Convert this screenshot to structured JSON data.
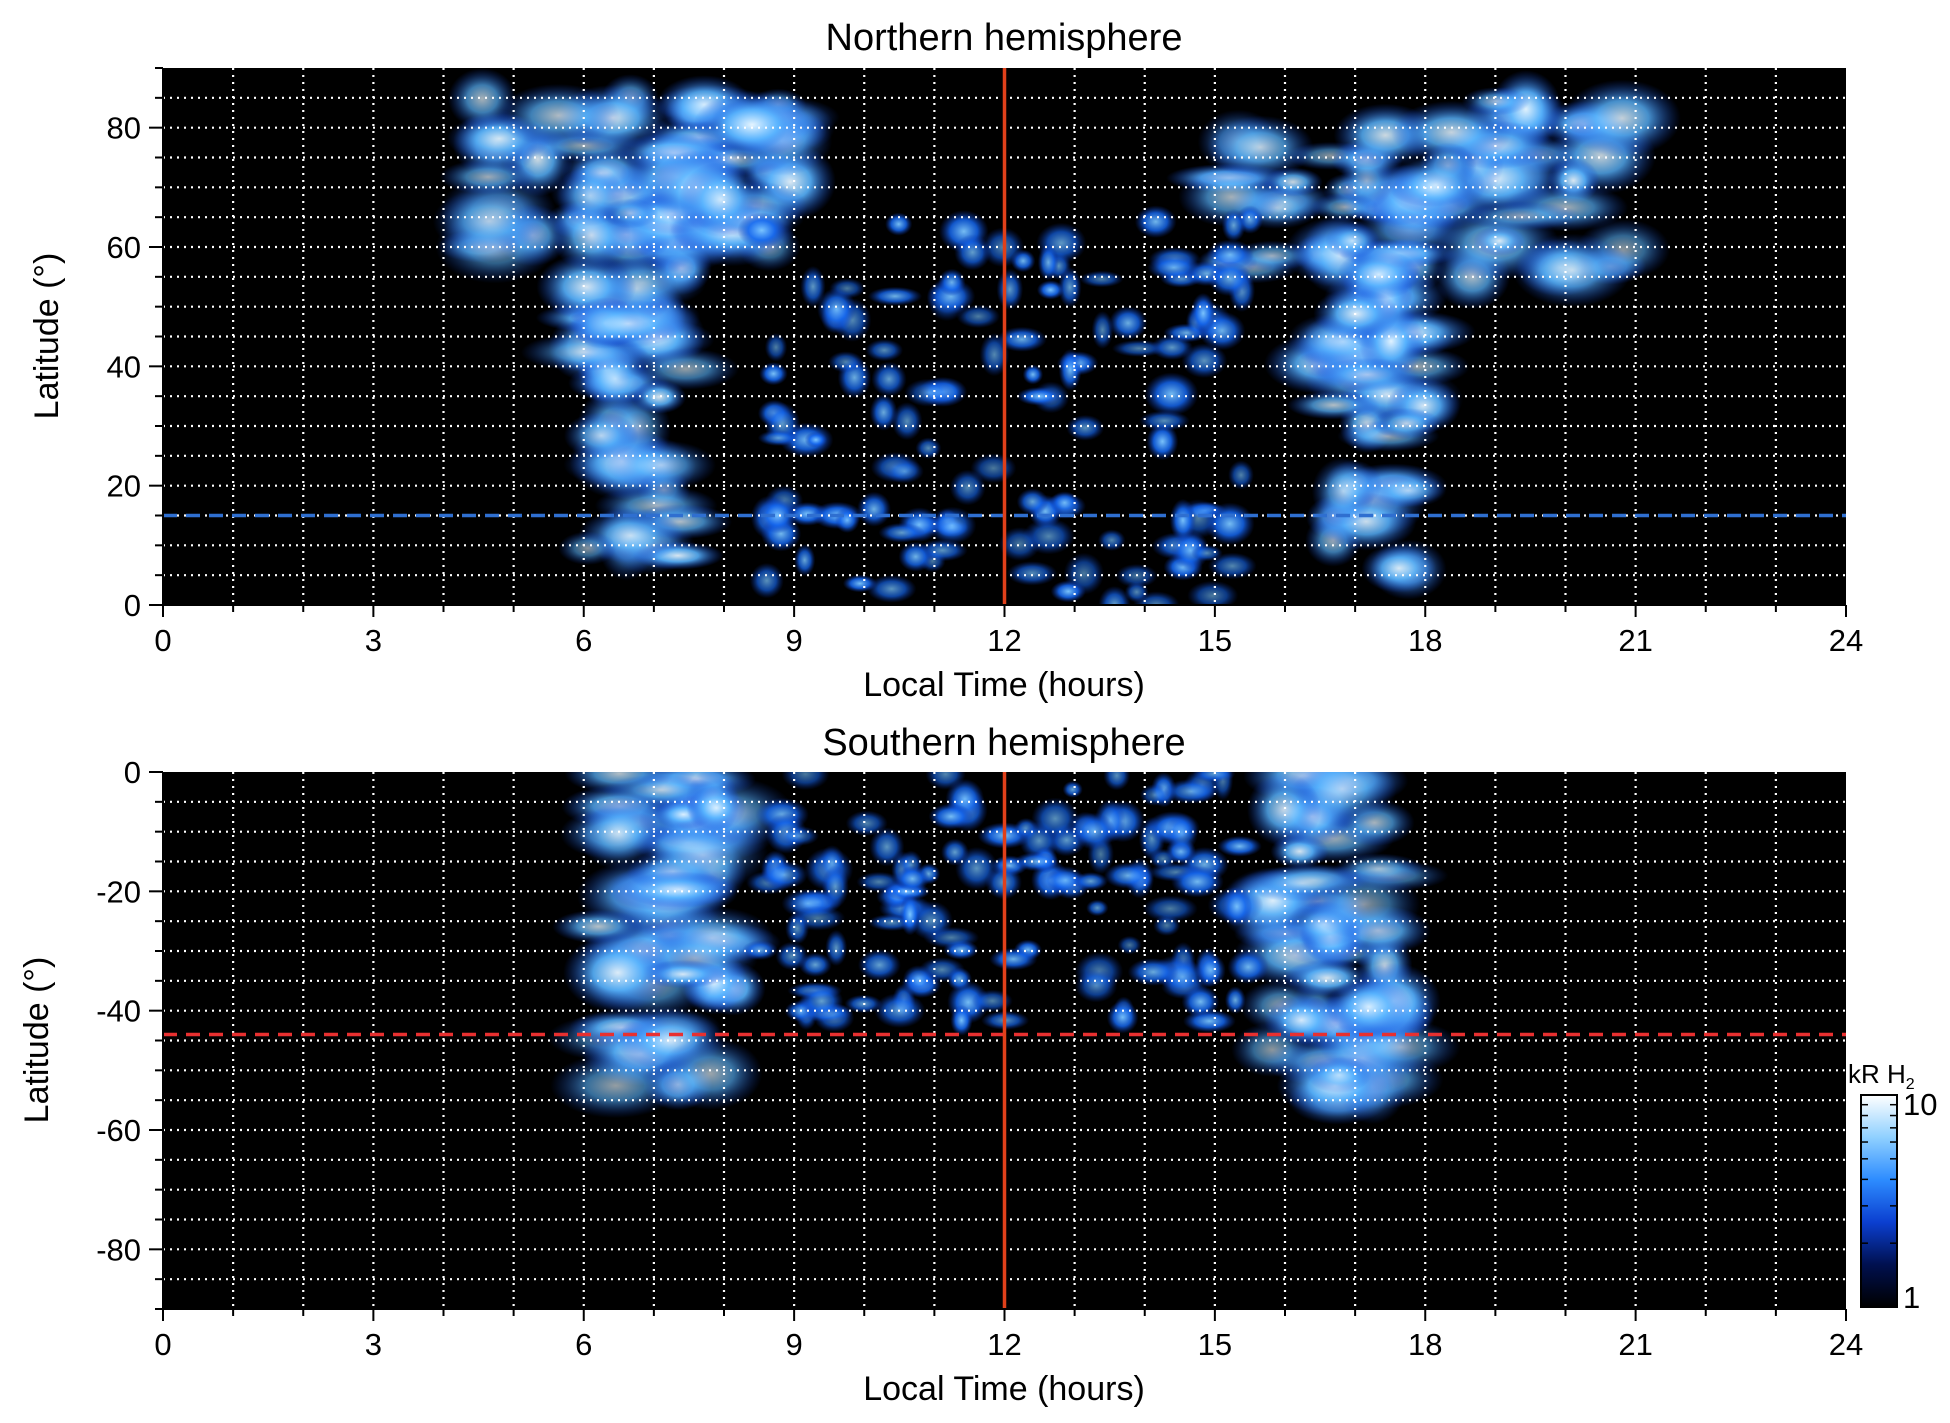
{
  "chart_data": [
    {
      "type": "heatmap",
      "title": "Northern hemisphere",
      "xlabel": "Local Time (hours)",
      "ylabel": "Latitude (°)",
      "xlim": [
        0,
        24
      ],
      "ylim": [
        0,
        90
      ],
      "xticks": [
        0,
        3,
        6,
        9,
        12,
        15,
        18,
        21,
        24
      ],
      "yticks": [
        0,
        20,
        40,
        60,
        80
      ],
      "grid": true,
      "grid_x_step": 1,
      "grid_y_step": 5,
      "vertical_line": {
        "x": 12,
        "color": "#e0401a"
      },
      "dashed_line": {
        "y": 15,
        "color": "#2f6fd0"
      },
      "features": [
        {
          "name": "dawn arc",
          "lt_range": [
            6.0,
            7.5
          ],
          "lat_range": [
            0,
            70
          ],
          "level": "high"
        },
        {
          "name": "dawn high-latitude band",
          "lt_range": [
            4.5,
            9
          ],
          "lat_range": [
            60,
            85
          ],
          "level": "high"
        },
        {
          "name": "dusk arc",
          "lt_range": [
            16.5,
            18
          ],
          "lat_range": [
            0,
            70
          ],
          "level": "high"
        },
        {
          "name": "dusk high-latitude band",
          "lt_range": [
            15,
            21
          ],
          "lat_range": [
            55,
            85
          ],
          "level": "high"
        },
        {
          "name": "noon patchy emission",
          "lt_range": [
            8.5,
            15.5
          ],
          "lat_range": [
            0,
            65
          ],
          "level": "medium"
        }
      ]
    },
    {
      "type": "heatmap",
      "title": "Southern hemisphere",
      "xlabel": "Local Time (hours)",
      "ylabel": "Latitude (°)",
      "xlim": [
        0,
        24
      ],
      "ylim": [
        -90,
        0
      ],
      "xticks": [
        0,
        3,
        6,
        9,
        12,
        15,
        18,
        21,
        24
      ],
      "yticks": [
        0,
        -20,
        -40,
        -60,
        -80
      ],
      "grid": true,
      "grid_x_step": 1,
      "grid_y_step": 5,
      "vertical_line": {
        "x": 12,
        "color": "#e0401a"
      },
      "dashed_line": {
        "y": -44,
        "color": "#e83030"
      },
      "features": [
        {
          "name": "dawn arc",
          "lt_range": [
            6.2,
            8.2
          ],
          "lat_range": [
            -57,
            0
          ],
          "level": "high"
        },
        {
          "name": "dusk arc",
          "lt_range": [
            15.8,
            17.8
          ],
          "lat_range": [
            -57,
            0
          ],
          "level": "high"
        },
        {
          "name": "noon patchy emission",
          "lt_range": [
            8.5,
            15.5
          ],
          "lat_range": [
            -42,
            0
          ],
          "level": "medium"
        }
      ]
    }
  ],
  "colorbar": {
    "label_main": "kR H",
    "label_sub": "2",
    "min_label": "1",
    "max_label": "10",
    "scale": "log",
    "range": [
      1,
      10
    ],
    "colors": [
      "#000000",
      "#00104f",
      "#0b3fd0",
      "#2d8cff",
      "#8fd0ff",
      "#ffffff"
    ]
  },
  "colors": {
    "background": "#000000",
    "grid": "#ffffff",
    "emission_low": "#0a3fd6",
    "emission_high": "#e9f6ff"
  }
}
